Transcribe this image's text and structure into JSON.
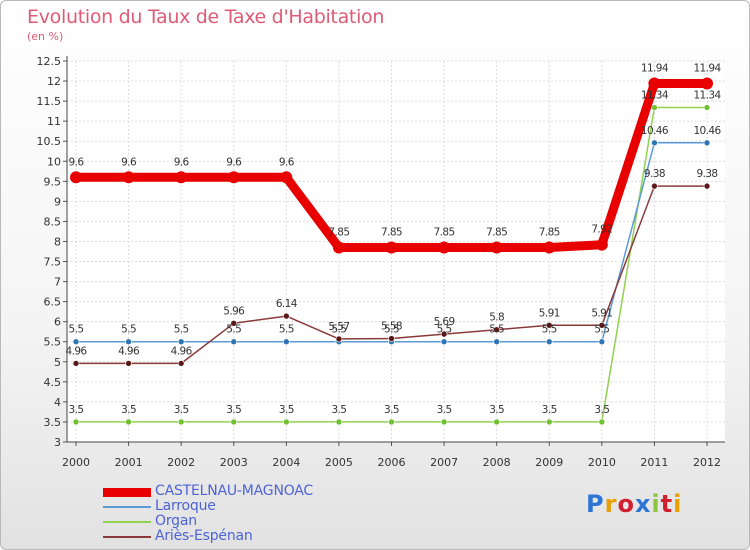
{
  "chart_data": {
    "type": "line",
    "title": "Evolution du Taux de Taxe d'Habitation",
    "unit_label": "(en %)",
    "xlabel": "",
    "ylabel": "",
    "ylim": [
      3,
      12.5
    ],
    "ytick_step": 0.5,
    "categories": [
      "2000",
      "2001",
      "2002",
      "2003",
      "2004",
      "2005",
      "2006",
      "2007",
      "2008",
      "2009",
      "2010",
      "2011",
      "2012"
    ],
    "series": [
      {
        "name": "CASTELNAU-MAGNOAC",
        "color": "#e80000",
        "marker": "#e80000",
        "values": [
          9.6,
          9.6,
          9.6,
          9.6,
          9.6,
          7.85,
          7.85,
          7.85,
          7.85,
          7.85,
          7.92,
          11.94,
          11.94
        ],
        "labels": [
          "9.6",
          "9.6",
          "9.6",
          "9.6",
          "9.6",
          "7.85",
          "7.85",
          "7.85",
          "7.85",
          "7.85",
          "7.92",
          "11.94",
          "11.94"
        ]
      },
      {
        "name": "Larroque",
        "color": "#5b9bd5",
        "marker": "#2e75b6",
        "values": [
          5.5,
          5.5,
          5.5,
          5.5,
          5.5,
          5.5,
          5.5,
          5.5,
          5.5,
          5.5,
          5.5,
          10.46,
          10.46
        ],
        "labels": [
          "5.5",
          "5.5",
          "5.5",
          "5.5",
          "5.5",
          "5.5",
          "5.5",
          "5.5",
          "5.5",
          "5.5",
          "5.5",
          "10.46",
          "10.46"
        ]
      },
      {
        "name": "Organ",
        "color": "#92d050",
        "marker": "#70c030",
        "values": [
          3.5,
          3.5,
          3.5,
          3.5,
          3.5,
          3.5,
          3.5,
          3.5,
          3.5,
          3.5,
          3.5,
          11.34,
          11.34
        ],
        "labels": [
          "3.5",
          "3.5",
          "3.5",
          "3.5",
          "3.5",
          "3.5",
          "3.5",
          "3.5",
          "3.5",
          "3.5",
          "3.5",
          "11.34",
          "11.34"
        ]
      },
      {
        "name": "Ariès-Espénan",
        "color": "#8b3a3a",
        "marker": "#5a1a1a",
        "values": [
          4.96,
          4.96,
          4.96,
          5.96,
          6.14,
          5.57,
          5.58,
          5.69,
          5.8,
          5.91,
          5.91,
          9.38,
          9.38
        ],
        "labels": [
          "4.96",
          "4.96",
          "4.96",
          "5.96",
          "6.14",
          "5.57",
          "5.58",
          "5.69",
          "5.8",
          "5.91",
          "5.91",
          "9.38",
          "9.38"
        ]
      }
    ],
    "legend_position": "bottom-left"
  },
  "logo": {
    "text": "Proxiti",
    "letter_colors": [
      "#2e75d6",
      "#e8a000",
      "#d02030",
      "#2e75d6",
      "#8cc63f",
      "#d02030",
      "#e8a000"
    ]
  }
}
